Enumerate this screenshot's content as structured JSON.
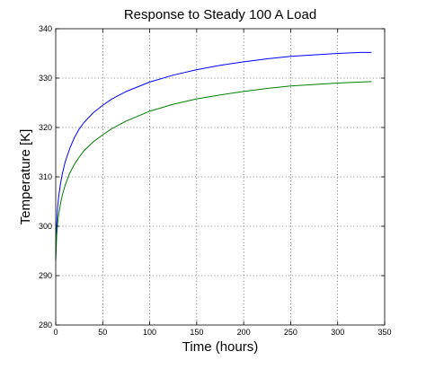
{
  "chart_data": {
    "type": "line",
    "title": "Response to Steady 100 A Load",
    "xlabel": "Time (hours)",
    "ylabel": "Temperature [K]",
    "xlim": [
      0,
      350
    ],
    "ylim": [
      280,
      340
    ],
    "xticks": [
      "0",
      "50",
      "100",
      "150",
      "200",
      "250",
      "300",
      "350"
    ],
    "yticks": [
      "280",
      "290",
      "300",
      "310",
      "320",
      "330",
      "340"
    ],
    "grid": true,
    "legend": "none",
    "series": [
      {
        "color": "#0000ff",
        "x": [
          0,
          1,
          2,
          3,
          5,
          7,
          10,
          15,
          20,
          25,
          30,
          40,
          50,
          60,
          75,
          100,
          125,
          150,
          175,
          200,
          225,
          250,
          275,
          300,
          325,
          336
        ],
        "values": [
          293.5,
          300.5,
          303.8,
          305.8,
          308.5,
          310.6,
          313.0,
          315.8,
          318.0,
          319.7,
          321.0,
          323.0,
          324.5,
          325.8,
          327.3,
          329.2,
          330.6,
          331.7,
          332.6,
          333.3,
          333.9,
          334.4,
          334.7,
          335.0,
          335.2,
          335.2
        ]
      },
      {
        "color": "#008000",
        "x": [
          0,
          1,
          2,
          3,
          5,
          7,
          10,
          15,
          20,
          25,
          30,
          40,
          50,
          60,
          75,
          100,
          125,
          150,
          175,
          200,
          225,
          250,
          275,
          300,
          325,
          336
        ],
        "values": [
          293.0,
          298.0,
          300.5,
          302.2,
          304.5,
          306.3,
          308.3,
          310.8,
          312.6,
          314.0,
          315.3,
          317.1,
          318.5,
          319.8,
          321.3,
          323.3,
          324.7,
          325.8,
          326.6,
          327.3,
          327.9,
          328.4,
          328.7,
          329.0,
          329.2,
          329.3
        ]
      }
    ]
  }
}
